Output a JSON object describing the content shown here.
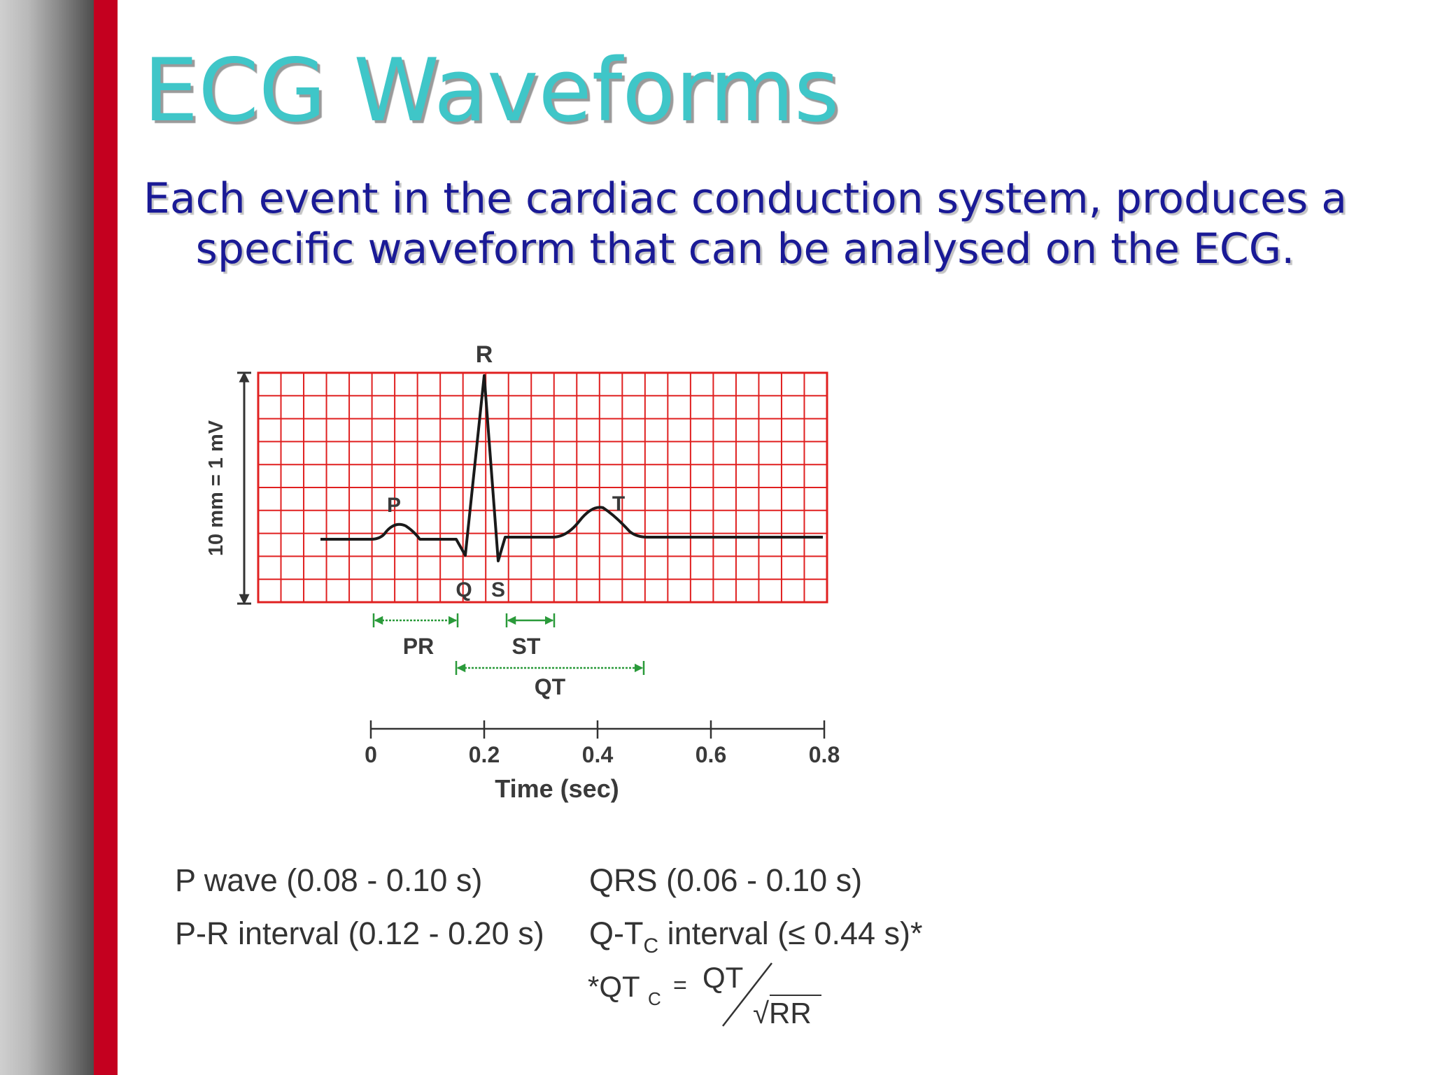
{
  "slide": {
    "title": "ECG Waveforms",
    "subtitle_line1": "Each event in the cardiac conduction system, produces a",
    "subtitle_line2": "specific waveform that can be analysed on the ECG.",
    "colors": {
      "title": "#3fc6c8",
      "subtitle": "#1a1a96",
      "side_bar_red": "#c4001f",
      "grid_red": "#e02020",
      "interval_green": "#2a9a3a"
    }
  },
  "diagram": {
    "scale_label": "10 mm = 1 mV",
    "waves": {
      "p": "P",
      "q": "Q",
      "r": "R",
      "s": "S",
      "t": "T"
    },
    "intervals": {
      "pr": "PR",
      "st": "ST",
      "qt": "QT"
    },
    "time_axis": {
      "label": "Time (sec)",
      "ticks": [
        "0",
        "0.2",
        "0.4",
        "0.6",
        "0.8"
      ]
    }
  },
  "legend": {
    "p_wave": "P wave (0.08 - 0.10 s)",
    "qrs": "QRS (0.06 - 0.10 s)",
    "pr_interval": "P-R interval (0.12 - 0.20 s)",
    "qtc_prefix": "Q-T",
    "qtc_sub": "C",
    "qtc_suffix": "interval (≤ 0.44 s)*",
    "formula_lhs": "*QT",
    "formula_lhs_sub": "C",
    "formula_eq": "=",
    "formula_num": "QT",
    "formula_den": "√RR"
  }
}
